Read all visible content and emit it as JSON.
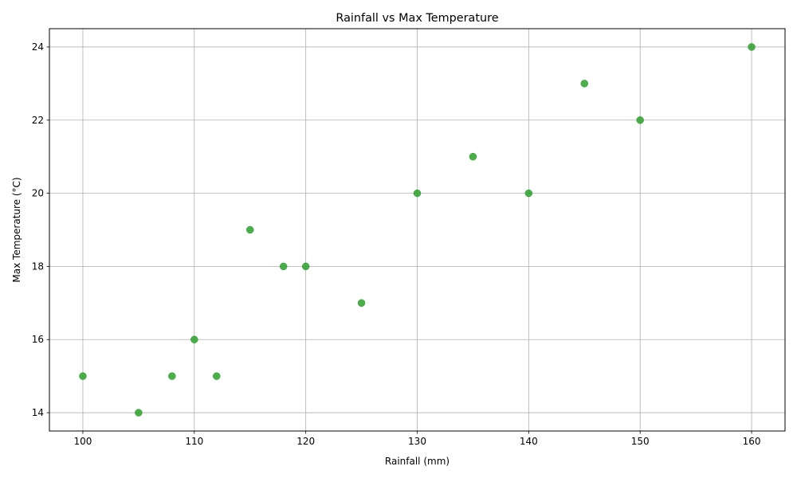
{
  "chart_data": {
    "type": "scatter",
    "title": "Rainfall vs Max Temperature",
    "xlabel": "Rainfall (mm)",
    "ylabel": "Max Temperature (°C)",
    "xlim": [
      97,
      163
    ],
    "ylim": [
      13.5,
      24.5
    ],
    "xticks": [
      100,
      110,
      120,
      130,
      140,
      150,
      160
    ],
    "yticks": [
      14,
      16,
      18,
      20,
      22,
      24
    ],
    "grid": true,
    "legend": "none",
    "marker_color": "#2ca02c",
    "points": [
      {
        "x": 100,
        "y": 15
      },
      {
        "x": 105,
        "y": 14
      },
      {
        "x": 108,
        "y": 15
      },
      {
        "x": 110,
        "y": 16
      },
      {
        "x": 112,
        "y": 15
      },
      {
        "x": 115,
        "y": 19
      },
      {
        "x": 118,
        "y": 18
      },
      {
        "x": 120,
        "y": 18
      },
      {
        "x": 125,
        "y": 17
      },
      {
        "x": 130,
        "y": 20
      },
      {
        "x": 135,
        "y": 21
      },
      {
        "x": 140,
        "y": 20
      },
      {
        "x": 145,
        "y": 23
      },
      {
        "x": 150,
        "y": 22
      },
      {
        "x": 160,
        "y": 24
      }
    ]
  }
}
